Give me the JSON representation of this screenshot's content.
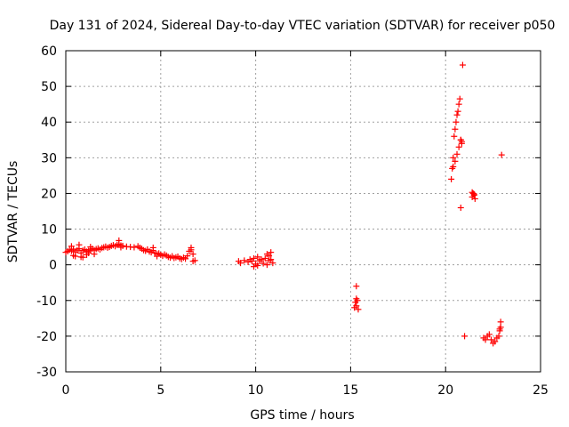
{
  "chart_data": {
    "type": "scatter",
    "title": "Day 131 of 2024, Sidereal Day-to-day VTEC variation (SDTVAR) for receiver p050",
    "xlabel": "GPS time / hours",
    "ylabel": "SDTVAR / TECUs",
    "xlim": [
      0,
      25
    ],
    "ylim": [
      -30,
      60
    ],
    "xticks": [
      0,
      5,
      10,
      15,
      20,
      25
    ],
    "xtick_labels": [
      "0",
      "5",
      "10",
      "15",
      "20",
      "25"
    ],
    "yticks": [
      -30,
      -20,
      -10,
      0,
      10,
      20,
      30,
      40,
      50,
      60
    ],
    "ytick_labels": [
      "-30",
      "-20",
      "-10",
      "0",
      "10",
      "20",
      "30",
      "40",
      "50",
      "60"
    ],
    "grid": true,
    "marker": "+",
    "color": "#ff0000",
    "series": [
      {
        "name": "SDTVAR",
        "x": [
          0.0,
          0.1,
          0.2,
          0.3,
          0.4,
          0.5,
          0.6,
          0.7,
          0.8,
          0.9,
          1.0,
          1.1,
          1.2,
          1.3,
          1.4,
          1.5,
          1.6,
          1.7,
          1.8,
          1.9,
          2.0,
          2.1,
          2.2,
          2.3,
          2.4,
          2.5,
          2.6,
          2.7,
          2.8,
          2.9,
          3.0,
          3.2,
          3.4,
          3.6,
          3.8,
          3.9,
          4.0,
          4.1,
          4.2,
          4.3,
          4.4,
          4.5,
          4.6,
          4.7,
          4.8,
          4.9,
          5.0,
          5.1,
          5.2,
          5.3,
          5.4,
          5.5,
          5.6,
          5.7,
          5.8,
          5.9,
          6.0,
          6.1,
          6.2,
          6.3,
          6.4,
          6.5,
          6.6,
          6.7,
          6.8,
          0.3,
          0.5,
          0.7,
          0.9,
          1.1,
          1.3,
          1.5,
          0.4,
          0.8,
          1.2,
          2.8,
          2.9,
          4.6,
          4.8,
          6.6,
          6.7,
          9.1,
          9.2,
          9.4,
          9.6,
          9.7,
          9.8,
          9.9,
          10.0,
          10.1,
          10.2,
          10.3,
          10.4,
          10.5,
          10.6,
          10.7,
          10.8,
          10.9,
          9.9,
          10.1,
          10.6,
          10.7,
          10.8,
          15.2,
          15.25,
          15.3,
          15.35,
          15.4,
          15.3,
          15.3,
          20.3,
          20.35,
          20.4,
          20.45,
          20.5,
          20.55,
          20.6,
          20.65,
          20.7,
          20.75,
          20.8,
          20.85,
          20.4,
          20.5,
          20.6,
          20.7,
          20.8,
          20.85,
          20.8,
          20.9,
          21.4,
          21.45,
          21.5,
          21.55,
          21.4,
          21.5,
          21.0,
          22.0,
          22.1,
          22.2,
          22.3,
          22.4,
          22.5,
          22.6,
          22.7,
          22.8,
          22.85,
          22.9,
          22.85,
          22.9,
          22.95
        ],
        "y": [
          3.5,
          3.8,
          4.2,
          3.9,
          4.4,
          3.6,
          4.1,
          4.5,
          3.3,
          4.0,
          4.3,
          3.7,
          3.9,
          4.2,
          4.5,
          4.1,
          4.4,
          4.6,
          4.3,
          4.7,
          4.9,
          5.1,
          4.8,
          5.0,
          5.3,
          5.5,
          5.2,
          5.6,
          5.8,
          5.4,
          5.3,
          5.1,
          5.0,
          4.9,
          5.2,
          4.8,
          4.5,
          4.1,
          3.9,
          4.3,
          3.7,
          3.5,
          4.0,
          3.3,
          3.0,
          3.2,
          2.8,
          2.5,
          2.9,
          2.6,
          2.2,
          2.0,
          2.4,
          1.9,
          2.1,
          2.3,
          1.8,
          1.6,
          2.0,
          1.7,
          2.5,
          3.8,
          4.2,
          3.0,
          1.2,
          5.2,
          2.4,
          5.6,
          2.1,
          2.8,
          5.0,
          3.0,
          2.6,
          2.2,
          3.3,
          6.8,
          4.9,
          4.8,
          2.4,
          4.8,
          1.0,
          1.0,
          0.5,
          1.2,
          0.8,
          1.5,
          1.0,
          1.8,
          0.2,
          2.2,
          1.1,
          1.5,
          0.4,
          1.8,
          3.0,
          2.5,
          1.5,
          0.5,
          -0.5,
          -0.2,
          0.0,
          1.2,
          3.5,
          -12.0,
          -10.5,
          -11.5,
          -10.0,
          -12.5,
          -6.0,
          -9.5,
          24.0,
          27.0,
          30.0,
          36.0,
          38.0,
          40.0,
          42.0,
          43.0,
          45.0,
          46.5,
          35.0,
          34.0,
          27.5,
          29.0,
          31.0,
          33.0,
          35.0,
          34.5,
          16.0,
          56.0,
          19.0,
          20.0,
          19.5,
          18.5,
          20.3,
          19.8,
          -20.0,
          -20.5,
          -21.0,
          -20.0,
          -19.5,
          -21.0,
          -22.0,
          -21.5,
          -20.5,
          -20.0,
          -18.0,
          -16.0,
          -18.5,
          -17.5,
          30.8
        ]
      }
    ]
  }
}
